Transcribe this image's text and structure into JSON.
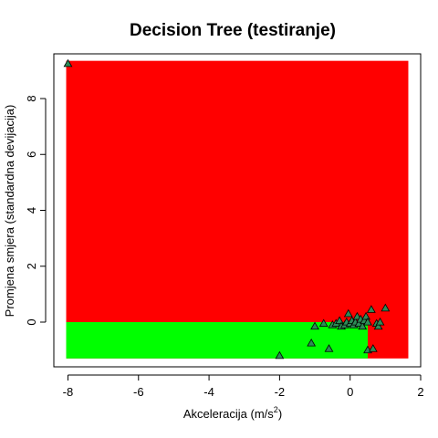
{
  "chart_data": {
    "type": "scatter",
    "title": "Decision Tree (testiranje)",
    "xlabel": {
      "text": "Akceleracija (m/s",
      "sup": "2",
      "close": ")"
    },
    "ylabel": "Promjena smjera (standardna devijacija)",
    "xlim": [
      -8.4,
      2.0
    ],
    "ylim": [
      -1.6,
      9.6
    ],
    "xticks": [
      "-8",
      "-6",
      "-4",
      "-2",
      "0",
      "2"
    ],
    "xtick_values": [
      -8,
      -6,
      -4,
      -2,
      0,
      2
    ],
    "yticks": [
      "0",
      "2",
      "4",
      "6",
      "8"
    ],
    "ytick_values": [
      0,
      2,
      4,
      6,
      8
    ],
    "colors": {
      "class_red": "#ff0000",
      "class_green": "#00ff00",
      "marker": "#2e8b57"
    },
    "regions": [
      {
        "class": "red",
        "color": "#ff0000",
        "x": [
          -8.05,
          1.65
        ],
        "y": [
          -1.3,
          9.35
        ]
      },
      {
        "class": "green",
        "color": "#00ff00",
        "x": [
          -8.05,
          0.5
        ],
        "y": [
          -1.3,
          0.0
        ]
      }
    ],
    "marker": "triangle",
    "points": [
      {
        "x": -8.0,
        "y": 9.25
      },
      {
        "x": -2.0,
        "y": -1.2
      },
      {
        "x": -1.1,
        "y": -0.75
      },
      {
        "x": -1.0,
        "y": -0.15
      },
      {
        "x": -0.75,
        "y": -0.05
      },
      {
        "x": -0.6,
        "y": -0.95
      },
      {
        "x": -0.5,
        "y": -0.1
      },
      {
        "x": -0.4,
        "y": -0.05
      },
      {
        "x": -0.3,
        "y": 0.05
      },
      {
        "x": -0.25,
        "y": -0.15
      },
      {
        "x": -0.15,
        "y": -0.1
      },
      {
        "x": -0.1,
        "y": 0.0
      },
      {
        "x": -0.05,
        "y": 0.3
      },
      {
        "x": 0.0,
        "y": -0.05
      },
      {
        "x": 0.05,
        "y": 0.05
      },
      {
        "x": 0.1,
        "y": -0.1
      },
      {
        "x": 0.15,
        "y": 0.0
      },
      {
        "x": 0.2,
        "y": 0.2
      },
      {
        "x": 0.25,
        "y": -0.05
      },
      {
        "x": 0.3,
        "y": 0.1
      },
      {
        "x": 0.35,
        "y": -0.15
      },
      {
        "x": 0.4,
        "y": 0.05
      },
      {
        "x": 0.45,
        "y": 0.2
      },
      {
        "x": 0.5,
        "y": -1.0
      },
      {
        "x": 0.5,
        "y": 0.0
      },
      {
        "x": 0.6,
        "y": 0.45
      },
      {
        "x": 0.65,
        "y": -0.95
      },
      {
        "x": 0.75,
        "y": -0.05
      },
      {
        "x": 0.8,
        "y": -0.15
      },
      {
        "x": 0.85,
        "y": 0.0
      },
      {
        "x": 1.0,
        "y": 0.5
      }
    ]
  }
}
